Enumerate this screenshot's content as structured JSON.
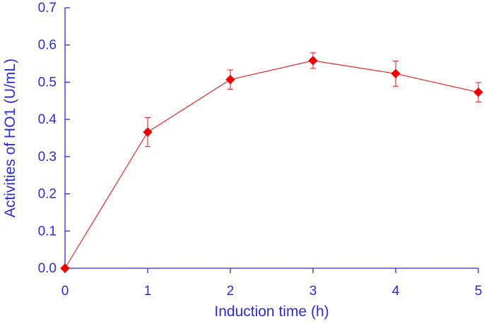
{
  "chart_data": {
    "type": "line",
    "xlabel": "Induction time (h)",
    "ylabel": "Activities of HO1  (U/mL)",
    "xlim": [
      0,
      5
    ],
    "ylim": [
      0,
      0.7
    ],
    "x_ticks": [
      "0",
      "1",
      "2",
      "3",
      "4",
      "5"
    ],
    "y_ticks": [
      "0.0",
      "0.1",
      "0.2",
      "0.3",
      "0.4",
      "0.5",
      "0.6",
      "0.7"
    ],
    "grid": false,
    "series": [
      {
        "x": [
          0,
          1,
          2,
          3,
          4,
          5
        ],
        "y": [
          0.0,
          0.366,
          0.507,
          0.558,
          0.523,
          0.473
        ],
        "error": [
          0,
          0.039,
          0.026,
          0.021,
          0.034,
          0.026
        ]
      }
    ],
    "colors": {
      "axis": "#2b2bd8",
      "series": "#e8262c",
      "marker": "#f00000"
    }
  }
}
